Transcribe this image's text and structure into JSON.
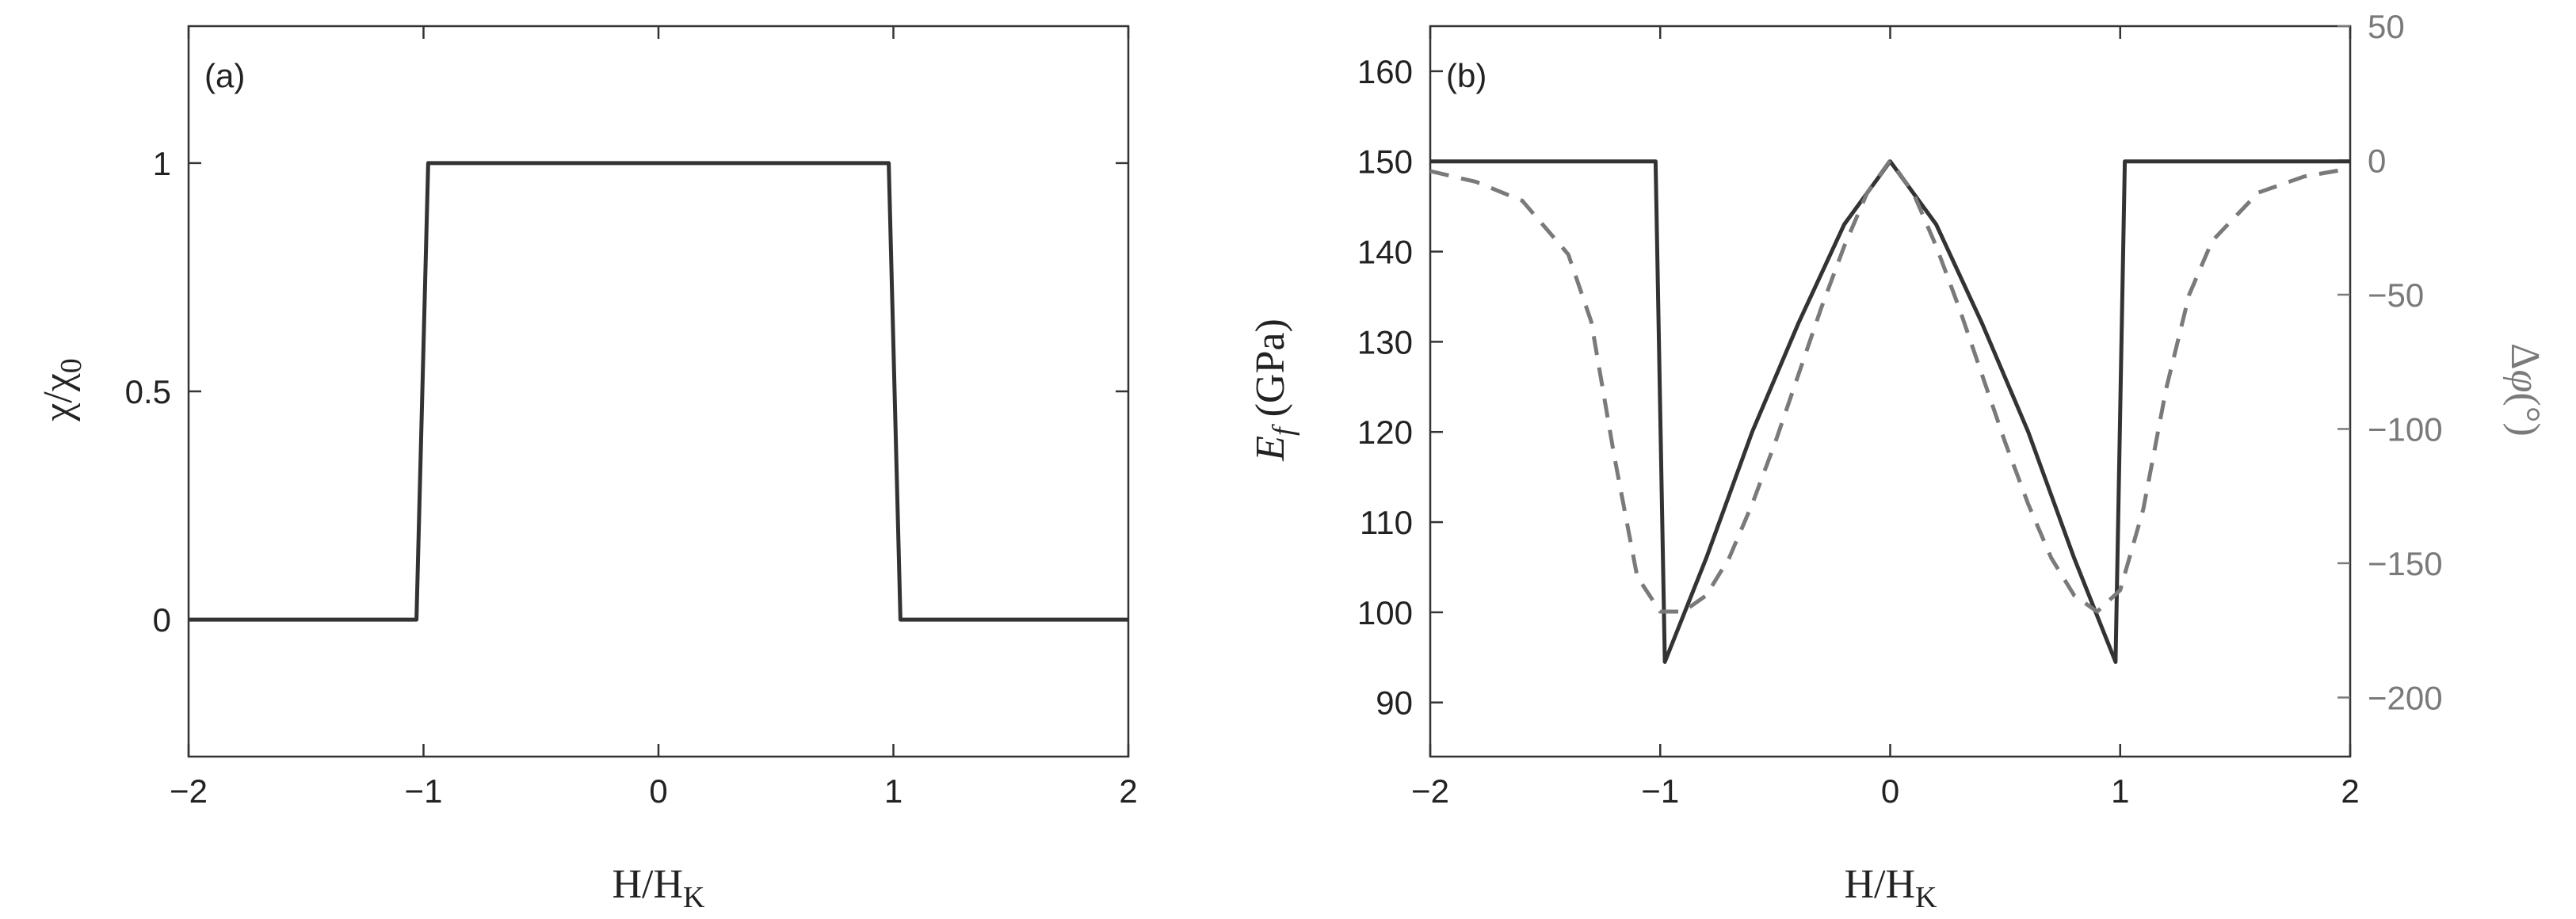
{
  "chart_data": [
    {
      "type": "line",
      "panel_label": "(a)",
      "xlabel": "H/H_K",
      "ylabel": "χ/χ₀",
      "xlim": [
        -2,
        2
      ],
      "ylim": [
        -0.3,
        1.3
      ],
      "x_ticks": [
        -2,
        -1,
        0,
        1,
        2
      ],
      "x_tick_labels": [
        "−2",
        "−1",
        "0",
        "1",
        "2"
      ],
      "y_ticks": [
        0,
        0.5,
        1
      ],
      "y_tick_labels": [
        "0",
        "0.5",
        "1"
      ],
      "grid": false,
      "series": [
        {
          "color": "#333333",
          "dash": "solid",
          "x": [
            -2,
            -1.03,
            -0.98,
            0.98,
            1.03,
            2
          ],
          "y": [
            0,
            0,
            1,
            1,
            0,
            0
          ]
        }
      ]
    },
    {
      "type": "line",
      "panel_label": "(b)",
      "xlabel": "H/H_K",
      "ylabel": "E_f (GPa)",
      "ylabel_right": "Δφ(°)",
      "xlim": [
        -2,
        2
      ],
      "ylim": [
        84,
        165
      ],
      "ylim_right": [
        -222,
        50
      ],
      "x_ticks": [
        -2,
        -1,
        0,
        1,
        2
      ],
      "x_tick_labels": [
        "−2",
        "−1",
        "0",
        "1",
        "2"
      ],
      "y_ticks": [
        90,
        100,
        110,
        120,
        130,
        140,
        150,
        160
      ],
      "y_tick_labels": [
        "90",
        "100",
        "110",
        "120",
        "130",
        "140",
        "150",
        "160"
      ],
      "y_ticks_right": [
        -200,
        -150,
        -100,
        -50,
        0,
        50
      ],
      "y_tick_labels_right": [
        "−200",
        "−150",
        "−100",
        "−50",
        "0",
        "50"
      ],
      "grid": false,
      "series": [
        {
          "axis": "left",
          "color": "#333333",
          "dash": "solid",
          "x": [
            -2,
            -1.02,
            -0.98,
            -0.8,
            -0.6,
            -0.4,
            -0.2,
            0,
            0.2,
            0.4,
            0.6,
            0.8,
            0.98,
            1.02,
            2
          ],
          "y": [
            150,
            150,
            94.5,
            106,
            120,
            132,
            143,
            150,
            143,
            132,
            120,
            106,
            94.5,
            150,
            150
          ]
        },
        {
          "axis": "right",
          "color": "#7a7a7a",
          "dash": "dashed",
          "x": [
            -2,
            -1.8,
            -1.6,
            -1.4,
            -1.3,
            -1.2,
            -1.1,
            -1.0,
            -0.9,
            -0.8,
            -0.7,
            -0.6,
            -0.5,
            -0.4,
            -0.3,
            -0.2,
            -0.1,
            0,
            0.1,
            0.2,
            0.3,
            0.4,
            0.5,
            0.6,
            0.7,
            0.8,
            0.9,
            1.0,
            1.1,
            1.2,
            1.3,
            1.4,
            1.6,
            1.8,
            2
          ],
          "y": [
            -4,
            -8,
            -15,
            -35,
            -60,
            -110,
            -155,
            -168,
            -168,
            -162,
            -148,
            -128,
            -105,
            -80,
            -55,
            -32,
            -12,
            0,
            -12,
            -32,
            -55,
            -80,
            -105,
            -128,
            -148,
            -162,
            -168,
            -160,
            -130,
            -85,
            -50,
            -30,
            -12,
            -6,
            -3
          ]
        }
      ]
    }
  ]
}
